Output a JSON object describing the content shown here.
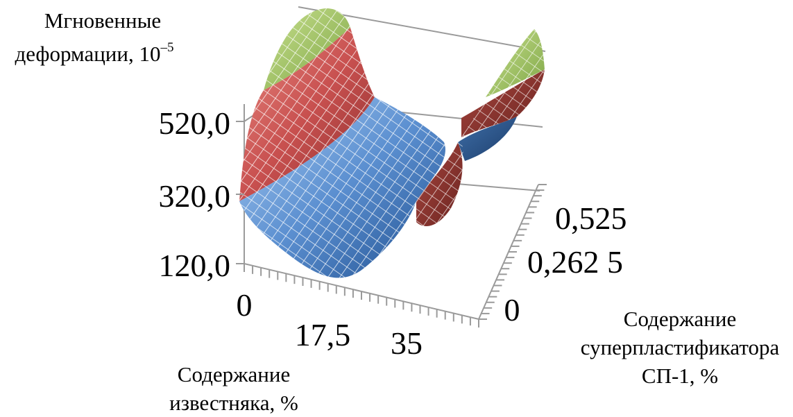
{
  "chart_data": {
    "type": "surface",
    "z_label": "Мгновенные деформации, 10",
    "z_label_line1": "Мгновенные",
    "z_label_line2": "деформации, 10",
    "z_label_exponent": "–5",
    "x_label_line1": "Содержание",
    "x_label_line2": "известняка, %",
    "y_label_line1": "Содержание",
    "y_label_line2": "суперпластификатора",
    "y_label_line3": "СП-1, %",
    "x_ticks": [
      "0",
      "17,5",
      "35"
    ],
    "x_tick_values": [
      0,
      17.5,
      35
    ],
    "y_ticks": [
      "0",
      "0,262 5",
      "0,525"
    ],
    "y_tick_values": [
      0,
      0.2625,
      0.525
    ],
    "z_ticks": [
      "120,0",
      "320,0",
      "520,0"
    ],
    "z_tick_values": [
      120,
      320,
      520
    ],
    "x_range": [
      0,
      35
    ],
    "y_range": [
      0,
      0.525
    ],
    "z_range": [
      120,
      720
    ],
    "corner_values": {
      "x0_y0": 380,
      "x0_y0525": 720,
      "x35_y0": 430,
      "x35_y0525": 600,
      "min_near_x17_5_y0": 150
    },
    "color_bands": [
      {
        "range": [
          120,
          320
        ],
        "color": "#5b8fd0"
      },
      {
        "range": [
          320,
          520
        ],
        "color": "#c8504f"
      },
      {
        "range": [
          520,
          720
        ],
        "color": "#9cc256"
      }
    ],
    "grid": true,
    "legend": "none"
  }
}
